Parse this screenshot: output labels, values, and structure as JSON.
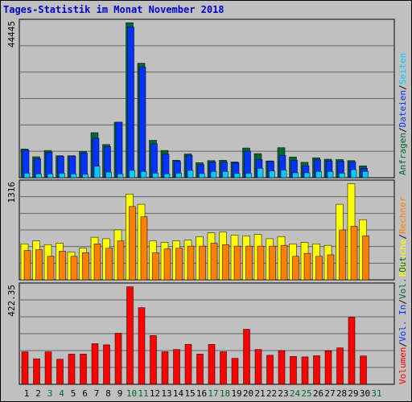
{
  "title": "Tages-Statistik im Monat November 2018",
  "colors": {
    "hits": "#006633",
    "files": "#0033ff",
    "pages": "#00ccff",
    "visits": "#ffff00",
    "sites": "#ff8000",
    "kbytes": "#ff0000",
    "weekday": "#000000",
    "weekend": "#006633",
    "grid": "#666666",
    "bg": "#c0c0c0"
  },
  "legend": {
    "top": [
      {
        "text": "Anfragen",
        "color": "#006633"
      },
      {
        "text": "Dateien",
        "color": "#0033ff"
      },
      {
        "text": "Seiten",
        "color": "#00ccff"
      }
    ],
    "middle": [
      {
        "text": "Besuche",
        "color": "#ffff00"
      },
      {
        "text": "Rechner",
        "color": "#ff8000"
      }
    ],
    "bottom": [
      {
        "text": "Volumen",
        "color": "#ff0000"
      },
      {
        "text": "Vol. In",
        "color": "#0033ff"
      },
      {
        "text": "Vol. Out",
        "color": "#006633"
      }
    ]
  },
  "chart_data": [
    {
      "type": "bar",
      "name": "requests",
      "ymax_label": "44445",
      "ymax": 44445,
      "categories": [
        1,
        2,
        3,
        4,
        5,
        6,
        7,
        8,
        9,
        10,
        11,
        12,
        13,
        14,
        15,
        16,
        17,
        18,
        19,
        20,
        21,
        22,
        23,
        24,
        25,
        26,
        27,
        28,
        29,
        30
      ],
      "series": [
        {
          "name": "Anfragen",
          "values": [
            8200,
            6000,
            7800,
            6300,
            6300,
            7500,
            12900,
            9500,
            15900,
            44400,
            32800,
            10700,
            7800,
            5000,
            6800,
            4300,
            4900,
            5000,
            4500,
            8500,
            6900,
            4800,
            8600,
            5900,
            4400,
            5700,
            5300,
            5200,
            4900,
            3400
          ]
        },
        {
          "name": "Dateien",
          "values": [
            7900,
            5400,
            7300,
            6100,
            6200,
            7100,
            11300,
            8900,
            15900,
            43200,
            31700,
            9700,
            6700,
            4700,
            6400,
            3700,
            4500,
            4500,
            4300,
            7600,
            5200,
            4700,
            6400,
            5000,
            3400,
            5100,
            4800,
            4700,
            4500,
            2700
          ]
        },
        {
          "name": "Seiten",
          "values": [
            1300,
            1100,
            1100,
            1300,
            1100,
            1000,
            3300,
            1600,
            1100,
            2100,
            1800,
            1300,
            1100,
            1300,
            2100,
            1200,
            1800,
            1800,
            1200,
            1300,
            2700,
            1900,
            2200,
            1400,
            1400,
            1800,
            1800,
            1300,
            2300,
            1800
          ]
        }
      ]
    },
    {
      "type": "bar",
      "name": "visits",
      "ymax_label": "1316",
      "ymax": 1316,
      "categories": [
        1,
        2,
        3,
        4,
        5,
        6,
        7,
        8,
        9,
        10,
        11,
        12,
        13,
        14,
        15,
        16,
        17,
        18,
        19,
        20,
        21,
        22,
        23,
        24,
        25,
        26,
        27,
        28,
        29,
        30
      ],
      "series": [
        {
          "name": "Besuche",
          "values": [
            490,
            530,
            480,
            500,
            380,
            430,
            580,
            560,
            680,
            1170,
            1030,
            530,
            510,
            530,
            540,
            590,
            640,
            650,
            610,
            600,
            620,
            560,
            590,
            490,
            510,
            490,
            470,
            1030,
            1310,
            820
          ]
        },
        {
          "name": "Rechner",
          "values": [
            400,
            410,
            320,
            390,
            320,
            370,
            490,
            430,
            530,
            1000,
            860,
            370,
            420,
            430,
            460,
            460,
            500,
            480,
            460,
            460,
            460,
            460,
            470,
            320,
            360,
            320,
            340,
            680,
            730,
            600
          ]
        }
      ]
    },
    {
      "type": "bar",
      "name": "volume",
      "ymax_label": "422.35",
      "ymax": 422.35,
      "categories": [
        1,
        2,
        3,
        4,
        5,
        6,
        7,
        8,
        9,
        10,
        11,
        12,
        13,
        14,
        15,
        16,
        17,
        18,
        19,
        20,
        21,
        22,
        23,
        24,
        25,
        26,
        27,
        28,
        29,
        30
      ],
      "series": [
        {
          "name": "Volumen",
          "values": [
            140,
            110,
            140,
            108,
            130,
            130,
            175,
            170,
            220,
            420,
            330,
            210,
            140,
            150,
            172,
            130,
            172,
            140,
            112,
            237,
            150,
            125,
            145,
            120,
            118,
            123,
            145,
            157,
            288,
            122
          ]
        }
      ]
    }
  ],
  "x_labels": [
    {
      "day": "1",
      "weekend": false
    },
    {
      "day": "2",
      "weekend": false
    },
    {
      "day": "3",
      "weekend": true
    },
    {
      "day": "4",
      "weekend": true
    },
    {
      "day": "5",
      "weekend": false
    },
    {
      "day": "6",
      "weekend": false
    },
    {
      "day": "7",
      "weekend": false
    },
    {
      "day": "8",
      "weekend": false
    },
    {
      "day": "9",
      "weekend": false
    },
    {
      "day": "10",
      "weekend": true
    },
    {
      "day": "11",
      "weekend": true
    },
    {
      "day": "12",
      "weekend": false
    },
    {
      "day": "13",
      "weekend": false
    },
    {
      "day": "14",
      "weekend": false
    },
    {
      "day": "15",
      "weekend": false
    },
    {
      "day": "16",
      "weekend": false
    },
    {
      "day": "17",
      "weekend": true
    },
    {
      "day": "18",
      "weekend": true
    },
    {
      "day": "19",
      "weekend": false
    },
    {
      "day": "20",
      "weekend": false
    },
    {
      "day": "21",
      "weekend": false
    },
    {
      "day": "22",
      "weekend": false
    },
    {
      "day": "23",
      "weekend": false
    },
    {
      "day": "24",
      "weekend": true
    },
    {
      "day": "25",
      "weekend": true
    },
    {
      "day": "26",
      "weekend": false
    },
    {
      "day": "27",
      "weekend": false
    },
    {
      "day": "28",
      "weekend": false
    },
    {
      "day": "29",
      "weekend": false
    },
    {
      "day": "30",
      "weekend": false
    },
    {
      "day": "31",
      "weekend": true
    }
  ]
}
